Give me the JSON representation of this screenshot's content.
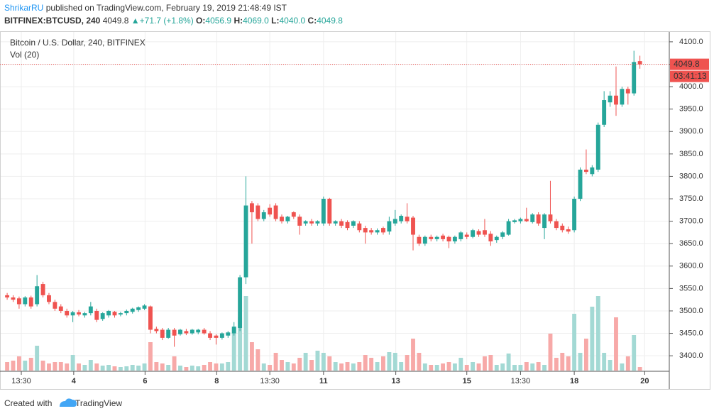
{
  "header": {
    "author": "ShrikarRU",
    "published": "published on TradingView.com, February 19, 2019 21:48:49 IST",
    "quote": {
      "symbol": "BITFINEX:BTCUSD, 240",
      "last": "4049.8",
      "arrow": "▲",
      "change": "+71.7 (+1.8%)",
      "o_label": "O:",
      "o": "4056.9",
      "h_label": "H:",
      "h": "4069.0",
      "l_label": "L:",
      "l": "4040.0",
      "c_label": "C:",
      "c": "4049.8"
    }
  },
  "chart_data": {
    "type": "candlestick",
    "title": "Bitcoin / U.S. Dollar, 240, BITFINEX",
    "volume_title": "Vol (20)",
    "up_color": "#26a69a",
    "down_color": "#ef5350",
    "volume_up_color": "#a3d9d4",
    "volume_down_color": "#f7a9a8",
    "open": [
      3535,
      3530,
      3528,
      3515,
      3530,
      3515,
      3560,
      3535,
      3520,
      3510,
      3500,
      3490,
      3497,
      3490,
      3495,
      3500,
      3482,
      3490,
      3498,
      3492,
      3495,
      3498,
      3502,
      3505,
      3510,
      3460,
      3458,
      3440,
      3458,
      3448,
      3455,
      3450,
      3452,
      3458,
      3450,
      3445,
      3440,
      3445,
      3450,
      3462,
      3575,
      3740,
      3735,
      3705,
      3730,
      3735,
      3710,
      3700,
      3720,
      3710,
      3695,
      3700,
      3695,
      3695,
      3750,
      3695,
      3700,
      3698,
      3690,
      3695,
      3685,
      3680,
      3675,
      3685,
      3677,
      3695,
      3700,
      3710,
      3708,
      3665,
      3650,
      3665,
      3660,
      3668,
      3665,
      3655,
      3660,
      3670,
      3665,
      3678,
      3680,
      3672,
      3658,
      3665,
      3670,
      3698,
      3700,
      3705,
      3698,
      3715,
      3685,
      3715,
      3700,
      3690,
      3682,
      3680,
      3750,
      3815,
      3805,
      3815,
      3915,
      3965,
      3980,
      3960,
      3995,
      3985,
      4056.9
    ],
    "high": [
      3540,
      3535,
      3532,
      3533,
      3534,
      3580,
      3565,
      3540,
      3525,
      3515,
      3505,
      3500,
      3502,
      3498,
      3520,
      3505,
      3497,
      3502,
      3500,
      3498,
      3503,
      3507,
      3510,
      3515,
      3512,
      3465,
      3462,
      3462,
      3462,
      3460,
      3460,
      3460,
      3460,
      3462,
      3455,
      3448,
      3452,
      3455,
      3475,
      3580,
      3800,
      3745,
      3740,
      3725,
      3738,
      3740,
      3715,
      3712,
      3722,
      3715,
      3702,
      3705,
      3702,
      3755,
      3752,
      3702,
      3705,
      3702,
      3702,
      3700,
      3690,
      3685,
      3684,
      3688,
      3710,
      3725,
      3715,
      3740,
      3712,
      3670,
      3668,
      3670,
      3668,
      3672,
      3668,
      3668,
      3678,
      3675,
      3683,
      3682,
      3705,
      3678,
      3668,
      3678,
      3705,
      3705,
      3708,
      3730,
      3718,
      3720,
      3718,
      3790,
      3705,
      3695,
      3688,
      3755,
      3820,
      3860,
      3825,
      3920,
      3990,
      3990,
      4045,
      4000,
      4000,
      4080,
      4069
    ],
    "low": [
      3525,
      3520,
      3505,
      3510,
      3505,
      3510,
      3530,
      3515,
      3500,
      3495,
      3485,
      3475,
      3488,
      3485,
      3490,
      3475,
      3478,
      3485,
      3485,
      3488,
      3490,
      3494,
      3498,
      3502,
      3450,
      3450,
      3435,
      3438,
      3420,
      3445,
      3446,
      3447,
      3448,
      3447,
      3435,
      3425,
      3436,
      3440,
      3445,
      3455,
      3560,
      3650,
      3700,
      3700,
      3710,
      3700,
      3695,
      3695,
      3705,
      3670,
      3690,
      3690,
      3690,
      3690,
      3690,
      3690,
      3685,
      3680,
      3685,
      3675,
      3650,
      3670,
      3670,
      3670,
      3670,
      3690,
      3695,
      3695,
      3635,
      3645,
      3645,
      3655,
      3655,
      3655,
      3640,
      3650,
      3655,
      3660,
      3662,
      3665,
      3665,
      3645,
      3652,
      3660,
      3668,
      3695,
      3695,
      3698,
      3695,
      3690,
      3660,
      3695,
      3680,
      3675,
      3672,
      3675,
      3745,
      3805,
      3800,
      3810,
      3910,
      3955,
      3935,
      3955,
      3960,
      3980,
      4040
    ],
    "close": [
      3530,
      3525,
      3515,
      3530,
      3510,
      3555,
      3535,
      3520,
      3505,
      3500,
      3490,
      3497,
      3492,
      3495,
      3510,
      3480,
      3495,
      3500,
      3490,
      3495,
      3500,
      3505,
      3508,
      3512,
      3458,
      3455,
      3440,
      3458,
      3445,
      3458,
      3450,
      3458,
      3458,
      3450,
      3440,
      3440,
      3450,
      3452,
      3465,
      3575,
      3735,
      3720,
      3705,
      3720,
      3715,
      3705,
      3700,
      3710,
      3710,
      3690,
      3700,
      3695,
      3700,
      3750,
      3695,
      3700,
      3690,
      3685,
      3700,
      3680,
      3675,
      3675,
      3680,
      3675,
      3700,
      3705,
      3712,
      3700,
      3670,
      3650,
      3665,
      3660,
      3665,
      3660,
      3655,
      3665,
      3675,
      3665,
      3680,
      3670,
      3670,
      3655,
      3665,
      3675,
      3700,
      3702,
      3705,
      3700,
      3715,
      3695,
      3715,
      3700,
      3685,
      3680,
      3677,
      3750,
      3815,
      3810,
      3820,
      3915,
      3970,
      3980,
      3960,
      3995,
      3985,
      4055,
      4049.8
    ],
    "volume": [
      12,
      14,
      20,
      14,
      18,
      35,
      14,
      10,
      12,
      12,
      10,
      22,
      10,
      8,
      15,
      10,
      7,
      8,
      6,
      5,
      6,
      8,
      7,
      10,
      40,
      12,
      10,
      8,
      20,
      7,
      5,
      7,
      6,
      8,
      12,
      10,
      10,
      12,
      60,
      75,
      105,
      40,
      30,
      10,
      8,
      25,
      15,
      12,
      10,
      18,
      25,
      15,
      28,
      25,
      20,
      12,
      10,
      12,
      10,
      12,
      22,
      18,
      12,
      20,
      26,
      25,
      12,
      22,
      45,
      25,
      10,
      8,
      8,
      10,
      12,
      10,
      18,
      8,
      12,
      10,
      20,
      22,
      8,
      10,
      24,
      8,
      8,
      12,
      10,
      12,
      8,
      52,
      18,
      25,
      20,
      80,
      25,
      45,
      90,
      105,
      25,
      15,
      75,
      10,
      20,
      50,
      5
    ],
    "last_price": 4049.8,
    "countdown": "03:41:13",
    "xlim": [
      -1.2,
      110.8
    ],
    "ylim": [
      3367,
      4122
    ],
    "xticks": [
      {
        "value": 2.37,
        "label": "13:30"
      },
      {
        "value": 11.15,
        "label": "4"
      },
      {
        "value": 23.1,
        "label": "6"
      },
      {
        "value": 35.1,
        "label": "8"
      },
      {
        "value": 44.0,
        "label": "13:30"
      },
      {
        "value": 53.0,
        "label": "11"
      },
      {
        "value": 65.1,
        "label": "13"
      },
      {
        "value": 77.0,
        "label": "15"
      },
      {
        "value": 86.0,
        "label": "13:30"
      },
      {
        "value": 95.0,
        "label": "18"
      },
      {
        "value": 106.8,
        "label": "20"
      }
    ],
    "yticks": [
      {
        "value": 3400,
        "label": "3400.0"
      },
      {
        "value": 3450,
        "label": "3450.0"
      },
      {
        "value": 3500,
        "label": "3500.0"
      },
      {
        "value": 3550,
        "label": "3550.0"
      },
      {
        "value": 3600,
        "label": "3600.0"
      },
      {
        "value": 3650,
        "label": "3650.0"
      },
      {
        "value": 3700,
        "label": "3700.0"
      },
      {
        "value": 3750,
        "label": "3750.0"
      },
      {
        "value": 3800,
        "label": "3800.0"
      },
      {
        "value": 3850,
        "label": "3850.0"
      },
      {
        "value": 3900,
        "label": "3900.0"
      },
      {
        "value": 3950,
        "label": "3950.0"
      },
      {
        "value": 4000,
        "label": "4000.0"
      },
      {
        "value": 4050,
        "label": "4050.0"
      },
      {
        "value": 4100,
        "label": "4100.0"
      }
    ],
    "grid": true
  },
  "footer": {
    "created": "Created with",
    "brand": "TradingView"
  }
}
